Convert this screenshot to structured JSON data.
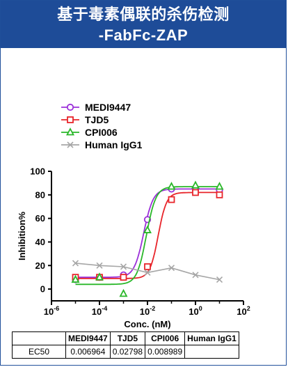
{
  "header": {
    "title_line1": "基于毒素偶联的杀伤检测",
    "title_line2": "-FabFc-ZAP"
  },
  "chart_data": {
    "type": "scatter",
    "xlabel": "Conc. (nM)",
    "ylabel": "Inhibition%",
    "xscale": "log",
    "xlim": [
      1e-06,
      100
    ],
    "ylim": [
      -10,
      100
    ],
    "x_tick_labels": [
      "10^-6",
      "10^-4",
      "10^-2",
      "10^0",
      "10^2"
    ],
    "y_ticks": [
      0,
      20,
      40,
      60,
      80,
      100
    ],
    "legend_position": "top-left",
    "series": [
      {
        "name": "MEDI9447",
        "color": "#9b30d9",
        "marker": "circle",
        "x": [
          1e-05,
          0.0001,
          0.001,
          0.01,
          0.1,
          1,
          10
        ],
        "y": [
          8,
          10,
          12,
          59,
          85,
          84,
          84
        ],
        "fit": {
          "bottom": 10,
          "top": 85,
          "ec50": 0.006964,
          "hill": 2.2
        }
      },
      {
        "name": "TJD5",
        "color": "#e8242a",
        "marker": "square",
        "x": [
          1e-05,
          0.0001,
          0.001,
          0.01,
          0.1,
          1,
          10
        ],
        "y": [
          10,
          10,
          10,
          19,
          76,
          82,
          80
        ],
        "fit": {
          "bottom": 9,
          "top": 82,
          "ec50": 0.02798,
          "hill": 2.5
        }
      },
      {
        "name": "CPI006",
        "color": "#29b729",
        "marker": "triangle",
        "x": [
          1e-05,
          0.0001,
          0.001,
          0.01,
          0.1,
          1,
          10
        ],
        "y": [
          8,
          10,
          -4,
          50,
          87,
          88,
          87
        ],
        "fit": {
          "bottom": 4,
          "top": 87,
          "ec50": 0.008989,
          "hill": 2.2
        }
      },
      {
        "name": "Human IgG1",
        "color": "#a6a6a6",
        "marker": "x",
        "x": [
          1e-05,
          0.0001,
          0.001,
          0.01,
          0.1,
          1,
          10
        ],
        "y": [
          22,
          20,
          19,
          14,
          18,
          12,
          8
        ],
        "fit": "line"
      }
    ]
  },
  "ec50_table": {
    "headers": [
      "",
      "MEDI9447",
      "TJD5",
      "CPI006",
      "Human IgG1"
    ],
    "row": [
      "EC50",
      "0.006964",
      "0.02798",
      "0.008989",
      ""
    ]
  }
}
